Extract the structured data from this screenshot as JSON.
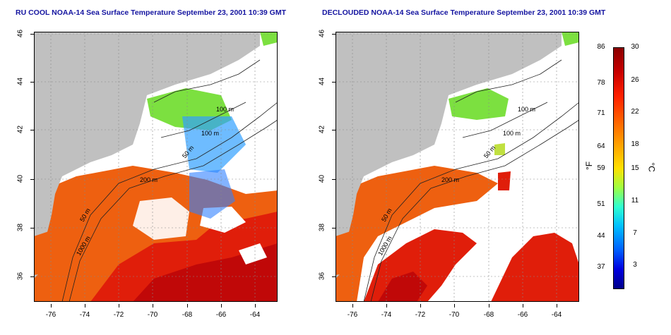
{
  "panels": [
    {
      "title": "RU COOL NOAA-14 Sea Surface Temperature September 23, 2001 10:39 GMT",
      "contour_labels": [
        "100 m",
        "100 m",
        "50 m",
        "200 m",
        "50 m",
        "1000 m"
      ]
    },
    {
      "title": "DECLOUDED NOAA-14 Sea Surface Temperature September 23, 2001 10:39 GMT",
      "contour_labels": [
        "100 m",
        "100 m",
        "50 m",
        "200 m",
        "50 m",
        "1000 m"
      ]
    }
  ],
  "x_ticks": [
    "-76",
    "-74",
    "-72",
    "-70",
    "-68",
    "-66",
    "-64"
  ],
  "y_ticks": [
    "46",
    "44",
    "42",
    "40",
    "38",
    "36"
  ],
  "colorbar": {
    "fahrenheit_ticks": [
      "86",
      "78",
      "71",
      "64",
      "59",
      "51",
      "44",
      "37"
    ],
    "celsius_ticks": [
      "30",
      "26",
      "22",
      "18",
      "15",
      "11",
      "7",
      "3"
    ],
    "unit_f": "°F",
    "unit_c": "°C"
  },
  "colors": {
    "land": "#c0c0c0",
    "cloud": "#ffffff",
    "title": "#1414a0"
  }
}
